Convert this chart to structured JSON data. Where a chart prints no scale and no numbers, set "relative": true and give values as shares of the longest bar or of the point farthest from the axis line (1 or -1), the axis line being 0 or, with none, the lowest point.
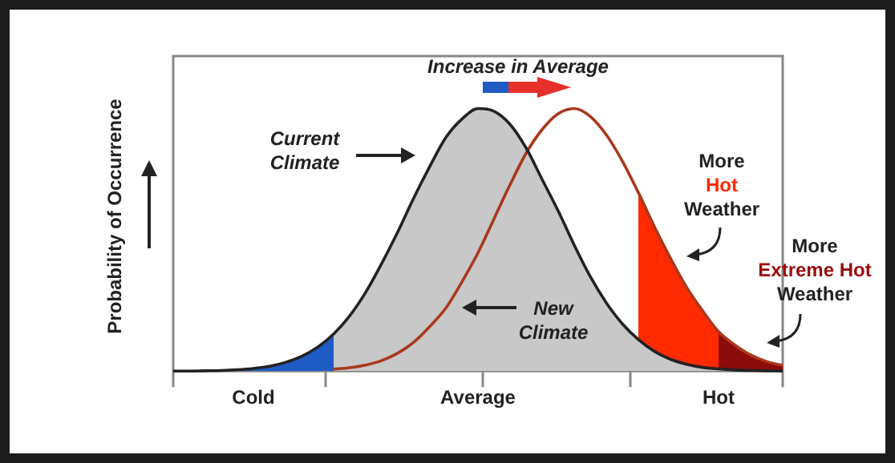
{
  "chart_data": {
    "type": "area",
    "relative": true,
    "ylabel": "Probability of Occurrence",
    "categories": [
      null,
      null,
      null,
      null,
      null,
      "Cold",
      null,
      null,
      null,
      null,
      null,
      null,
      null,
      null,
      null,
      null,
      null,
      null,
      null,
      "Average",
      null,
      null,
      null,
      null,
      null,
      null,
      null,
      null,
      null,
      null,
      null,
      null,
      null,
      null,
      "Hot",
      null,
      null,
      null,
      null
    ],
    "series": [
      {
        "type": "area",
        "color": "#1f5bc4",
        "values": [
          0,
          0,
          0.001,
          0.002,
          0.005,
          0.01,
          0.018,
          0.033,
          0.056,
          0.091,
          0.141,
          null,
          null,
          null,
          null,
          null,
          null,
          null,
          null,
          null,
          null,
          null,
          null,
          null,
          null,
          null,
          null,
          null,
          null,
          null,
          null,
          null,
          null,
          null,
          null,
          null,
          null,
          null,
          null
        ]
      },
      {
        "type": "area",
        "color": "#c8c8c8",
        "values": [
          null,
          null,
          null,
          null,
          null,
          null,
          null,
          null,
          null,
          null,
          0.141,
          0.21,
          0.3,
          0.41,
          0.53,
          0.66,
          0.78,
          0.89,
          0.96,
          1.0,
          0.99,
          0.94,
          0.85,
          0.73,
          0.61,
          0.48,
          0.36,
          0.26,
          0.18,
          0.12,
          0.075,
          0.045,
          0.026,
          0.014,
          0.008,
          0.004,
          0.002,
          0.001,
          0
        ]
      },
      {
        "type": "area",
        "color": "#ff2a00",
        "values": [
          null,
          null,
          null,
          null,
          null,
          null,
          null,
          null,
          null,
          null,
          null,
          null,
          null,
          null,
          null,
          null,
          null,
          null,
          null,
          null,
          null,
          null,
          null,
          null,
          null,
          null,
          null,
          null,
          null,
          0.68,
          0.55,
          0.43,
          0.32,
          0.23,
          0.15,
          null,
          null,
          null,
          null
        ]
      },
      {
        "type": "area",
        "color": "#8b0a0a",
        "values": [
          null,
          null,
          null,
          null,
          null,
          null,
          null,
          null,
          null,
          null,
          null,
          null,
          null,
          null,
          null,
          null,
          null,
          null,
          null,
          null,
          null,
          null,
          null,
          null,
          null,
          null,
          null,
          null,
          null,
          null,
          null,
          null,
          null,
          null,
          0.15,
          0.1,
          0.061,
          0.036,
          0.021
        ]
      },
      {
        "type": "line",
        "color": "#222222",
        "values": [
          0,
          0,
          0.001,
          0.002,
          0.005,
          0.01,
          0.018,
          0.033,
          0.056,
          0.091,
          0.141,
          0.21,
          0.3,
          0.41,
          0.53,
          0.66,
          0.78,
          0.89,
          0.96,
          1.0,
          0.99,
          0.94,
          0.85,
          0.73,
          0.61,
          0.48,
          0.36,
          0.26,
          0.18,
          0.12,
          0.075,
          0.045,
          0.026,
          0.014,
          0.008,
          0.004,
          0.002,
          0.001,
          0
        ]
      },
      {
        "type": "line",
        "color": "#a8381c",
        "values": [
          null,
          null,
          null,
          null,
          null,
          null,
          null,
          null,
          null,
          null,
          0.007,
          0.013,
          0.023,
          0.04,
          0.068,
          0.11,
          0.17,
          0.24,
          0.34,
          0.45,
          0.58,
          0.71,
          0.83,
          0.92,
          0.98,
          1.0,
          0.97,
          0.9,
          0.8,
          0.68,
          0.55,
          0.43,
          0.32,
          0.23,
          0.15,
          0.1,
          0.061,
          0.036,
          0.021
        ]
      }
    ],
    "annotations": [
      "Increase in Average",
      "Current\nClimate",
      "New\nClimate",
      "More\nHot\nWeather",
      "More\nExtreme Hot\nWeather"
    ],
    "grid": false,
    "legend": false,
    "marker": "none"
  }
}
